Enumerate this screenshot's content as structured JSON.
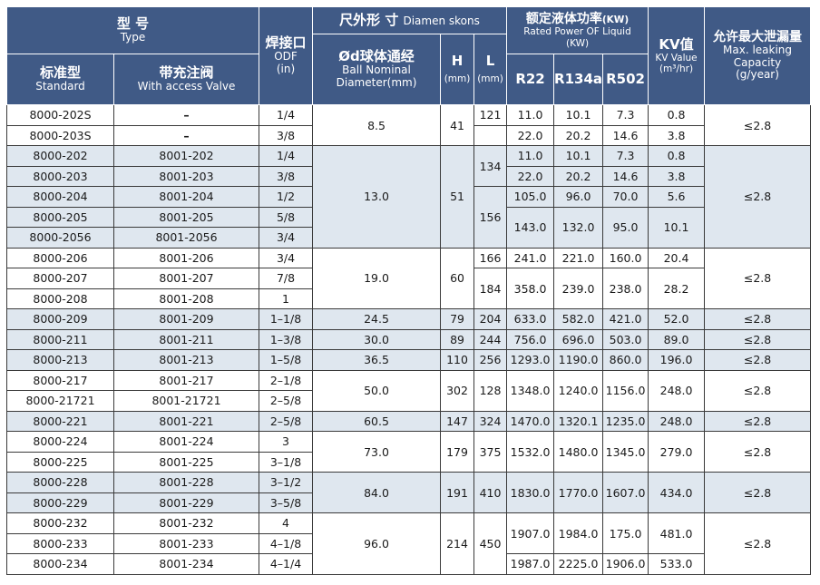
{
  "header": {
    "type_zh": "型 号",
    "type_en": "Type",
    "standard_zh": "标准型",
    "standard_en": "Standard",
    "valve_zh": "带充注阀",
    "valve_en": "With access Valve",
    "odf_zh": "焊接口",
    "odf_en": "ODF",
    "odf_unit": "(in)",
    "dim_title_zh": "尺外形 寸",
    "dim_title_en": "Diamen skons",
    "ball_zh": "Ød球体通经",
    "ball_en1": "Ball Nominal",
    "ball_en2": "Diameter(mm)",
    "h": "H",
    "h_unit": "(mm)",
    "l": "L",
    "l_unit": "(mm)",
    "power_zh": "额定液体功率",
    "power_unit": "(KW)",
    "power_en1": "Rated Power OF Liquid",
    "power_en2": "(KW)",
    "r22": "R22",
    "r134a": "R134a",
    "r502": "R502",
    "kv_zh": "KV值",
    "kv_en": "KV Value",
    "kv_unit": "(m³/hr)",
    "leak_zh": "允许最大泄漏量",
    "leak_en1": "Max. leaking",
    "leak_en2": "Capacity",
    "leak_unit": "(g/year)"
  },
  "rows": [
    [
      "8000-202S",
      "–",
      "1/4",
      "8.5",
      "41",
      "121",
      "11.0",
      "10.1",
      "7.3",
      "0.8",
      "≤2.8"
    ],
    [
      "8000-203S",
      "–",
      "3/8",
      "",
      "",
      "",
      "22.0",
      "20.2",
      "14.6",
      "3.8",
      ""
    ],
    [
      "8000-202",
      "8001-202",
      "1/4",
      "13.0",
      "51",
      "134",
      "11.0",
      "10.1",
      "7.3",
      "0.8",
      "≤2.8"
    ],
    [
      "8000-203",
      "8001-203",
      "3/8",
      "",
      "",
      "",
      "22.0",
      "20.2",
      "14.6",
      "3.8",
      ""
    ],
    [
      "8000-204",
      "8001-204",
      "1/2",
      "",
      "",
      "156",
      "105.0",
      "96.0",
      "70.0",
      "5.6",
      ""
    ],
    [
      "8000-205",
      "8001-205",
      "5/8",
      "",
      "",
      "",
      "143.0",
      "132.0",
      "95.0",
      "10.1",
      ""
    ],
    [
      "8000-2056",
      "8001-2056",
      "3/4",
      "",
      "",
      "",
      "",
      "",
      "",
      "",
      ""
    ],
    [
      "8000-206",
      "8001-206",
      "3/4",
      "19.0",
      "60",
      "166",
      "241.0",
      "221.0",
      "160.0",
      "20.4",
      "≤2.8"
    ],
    [
      "8000-207",
      "8001-207",
      "7/8",
      "",
      "",
      "184",
      "358.0",
      "239.0",
      "238.0",
      "28.2",
      ""
    ],
    [
      "8000-208",
      "8001-208",
      "1",
      "",
      "",
      "",
      "",
      "",
      "",
      "",
      ""
    ],
    [
      "8000-209",
      "8001-209",
      "1–1/8",
      "24.5",
      "79",
      "204",
      "633.0",
      "582.0",
      "421.0",
      "52.0",
      "≤2.8"
    ],
    [
      "8000-211",
      "8001-211",
      "1–3/8",
      "30.0",
      "89",
      "244",
      "756.0",
      "696.0",
      "503.0",
      "89.0",
      "≤2.8"
    ],
    [
      "8000-213",
      "8001-213",
      "1–5/8",
      "36.5",
      "110",
      "256",
      "1293.0",
      "1190.0",
      "860.0",
      "196.0",
      "≤2.8"
    ],
    [
      "8000-217",
      "8001-217",
      "2–1/8",
      "50.0",
      "302",
      "128",
      "1348.0",
      "1240.0",
      "1156.0",
      "248.0",
      "≤2.8"
    ],
    [
      "8000-21721",
      "8001-21721",
      "2–5/8",
      "",
      "",
      "",
      "",
      "",
      "",
      "",
      ""
    ],
    [
      "8000-221",
      "8001-221",
      "2–5/8",
      "60.5",
      "147",
      "324",
      "1470.0",
      "1320.1",
      "1235.0",
      "248.0",
      "≤2.8"
    ],
    [
      "8000-224",
      "8001-224",
      "3",
      "73.0",
      "179",
      "375",
      "1532.0",
      "1480.0",
      "1345.0",
      "279.0",
      "≤2.8"
    ],
    [
      "8000-225",
      "8001-225",
      "3–1/8",
      "",
      "",
      "",
      "",
      "",
      "",
      "",
      ""
    ],
    [
      "8000-228",
      "8001-228",
      "3–1/2",
      "84.0",
      "191",
      "410",
      "1830.0",
      "1770.0",
      "1607.0",
      "434.0",
      "≤2.8"
    ],
    [
      "8000-229",
      "8001-229",
      "3–5/8",
      "",
      "",
      "",
      "",
      "",
      "",
      "",
      ""
    ],
    [
      "8000-232",
      "8001-232",
      "4",
      "96.0",
      "214",
      "450",
      "1907.0",
      "1984.0",
      "175.0",
      "481.0",
      "≤2.8"
    ],
    [
      "8000-233",
      "8001-233",
      "4–1/8",
      "",
      "",
      "",
      "",
      "",
      "",
      "",
      ""
    ],
    [
      "8000-234",
      "8001-234",
      "4–1/4",
      "",
      "",
      "",
      "1987.0",
      "2225.0",
      "1906.0",
      "533.0",
      ""
    ]
  ],
  "colors": {
    "header_bg": "#405a86",
    "shaded_row": "#dfe7ef",
    "border": "#3a3a3a"
  }
}
